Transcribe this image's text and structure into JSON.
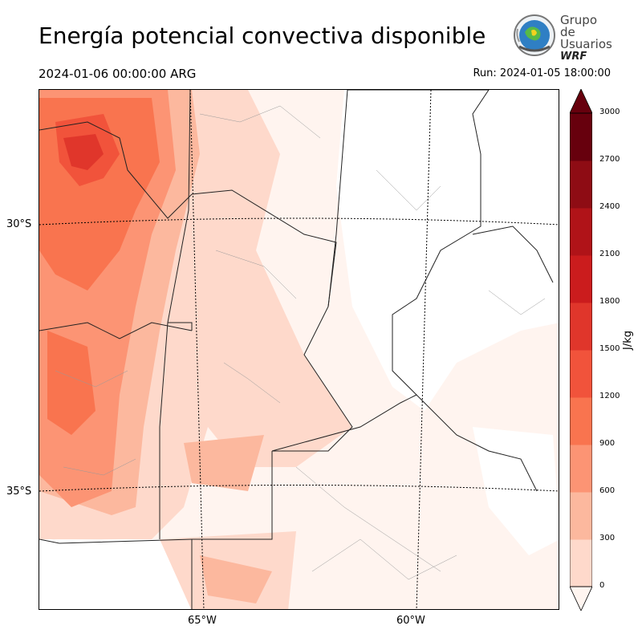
{
  "header": {
    "title": "Energía potencial convectiva disponible",
    "valid_time": "2024-01-06 00:00:00 ARG",
    "run_time": "Run: 2024-01-05 18:00:00"
  },
  "logo": {
    "line1": "Grupo de",
    "line2": "Usuarios",
    "line3": "WRF"
  },
  "map": {
    "variable": "CAPE",
    "lat_labels": [
      "30°S",
      "35°S"
    ],
    "lon_labels": [
      "65°W",
      "60°W"
    ]
  },
  "colorbar": {
    "unit": "J/kg",
    "ticks": [
      "0",
      "300",
      "600",
      "900",
      "1200",
      "1500",
      "1800",
      "2100",
      "2400",
      "2700",
      "3000"
    ],
    "colors": [
      "#fff0eb",
      "#fed9cb",
      "#fcb89e",
      "#fc9474",
      "#f9744f",
      "#f1533b",
      "#e0362b",
      "#cb1c1d",
      "#b01318",
      "#8e0c14",
      "#67000d"
    ],
    "extend": "both"
  }
}
